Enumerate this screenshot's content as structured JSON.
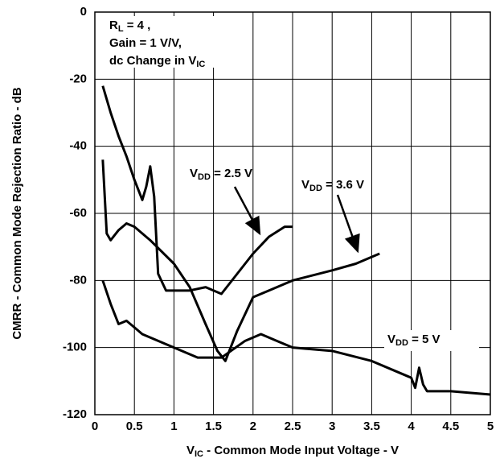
{
  "chart_data": {
    "type": "line",
    "xlabel": [
      "V",
      "IC",
      " - Common Mode Input Voltage - V"
    ],
    "ylabel": "CMRR - Common Mode Rejection Ratio - dB",
    "conditions": [
      [
        "R",
        "L",
        " = 4    ,"
      ],
      [
        "Gain = 1 V/V,"
      ],
      [
        "dc Change in V",
        "IC"
      ]
    ],
    "annotations": [
      [
        "V",
        "DD",
        " = 2.5 V"
      ],
      [
        "V",
        "DD",
        " = 3.6 V"
      ],
      [
        "V",
        "DD",
        " = 5 V"
      ]
    ],
    "xlim": [
      0,
      5
    ],
    "ylim": [
      -120,
      0
    ],
    "xticks": [
      0,
      0.5,
      1,
      1.5,
      2,
      2.5,
      3,
      3.5,
      4,
      4.5,
      5
    ],
    "yticks": [
      0,
      -20,
      -40,
      -60,
      -80,
      -100,
      -120
    ],
    "grid": true,
    "series": [
      {
        "name": "V_DD = 2.5 V",
        "color": "#000000",
        "x": [
          0.1,
          0.2,
          0.3,
          0.4,
          0.5,
          0.6,
          0.65,
          0.7,
          0.75,
          0.8,
          0.9,
          1.0,
          1.2,
          1.4,
          1.6,
          1.8,
          2.0,
          2.2,
          2.4,
          2.5
        ],
        "values": [
          -22,
          -30,
          -37,
          -43,
          -50,
          -56,
          -52,
          -46,
          -55,
          -78,
          -83,
          -83,
          -83,
          -82,
          -84,
          -78,
          -72,
          -67,
          -64,
          -64
        ]
      },
      {
        "name": "V_DD = 3.6 V",
        "color": "#000000",
        "x": [
          0.1,
          0.15,
          0.2,
          0.3,
          0.4,
          0.5,
          0.7,
          1.0,
          1.2,
          1.4,
          1.55,
          1.65,
          1.8,
          2.0,
          2.2,
          2.5,
          3.0,
          3.3,
          3.5,
          3.6
        ],
        "values": [
          -44,
          -66,
          -68,
          -65,
          -63,
          -64,
          -68,
          -75,
          -82,
          -93,
          -101,
          -104,
          -95,
          -85,
          -83,
          -80,
          -77,
          -75,
          -73,
          -72
        ]
      },
      {
        "name": "V_DD = 5 V",
        "color": "#000000",
        "x": [
          0.1,
          0.2,
          0.3,
          0.4,
          0.5,
          0.6,
          0.9,
          1.3,
          1.6,
          1.9,
          2.1,
          2.3,
          2.5,
          3.0,
          3.5,
          4.0,
          4.05,
          4.1,
          4.15,
          4.2,
          4.5,
          5.0
        ],
        "values": [
          -80,
          -87,
          -93,
          -92,
          -94,
          -96,
          -99,
          -103,
          -103,
          -98,
          -96,
          -98,
          -100,
          -101,
          -104,
          -109,
          -112,
          -106,
          -111,
          -113,
          -113,
          -114
        ]
      }
    ]
  }
}
